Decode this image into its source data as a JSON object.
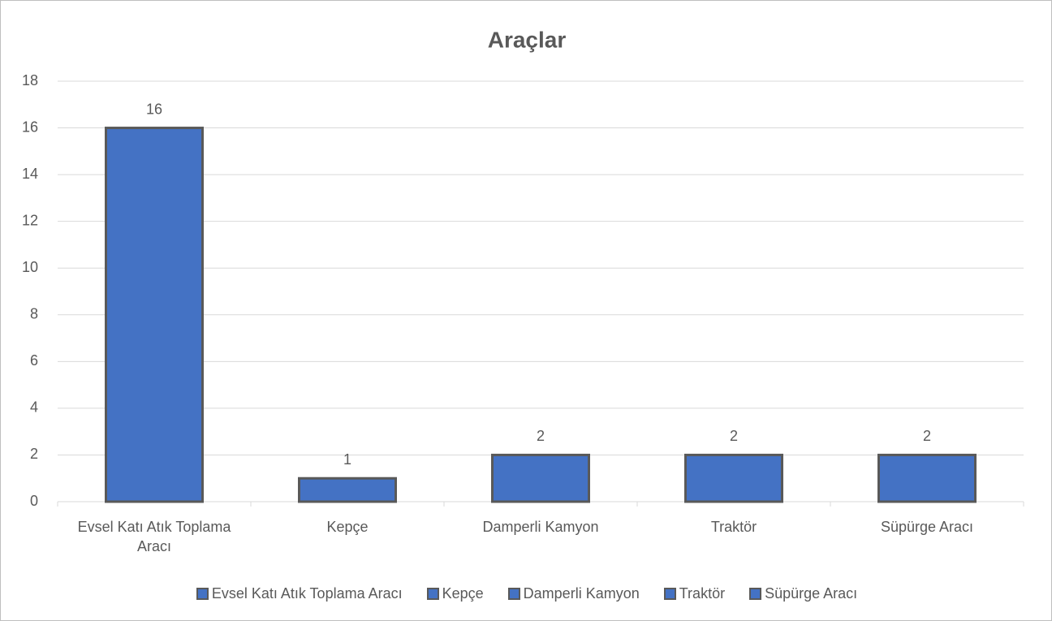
{
  "chart_data": {
    "type": "bar",
    "title": "Araçlar",
    "categories": [
      "Evsel Katı Atık Toplama Aracı",
      "Kepçe",
      "Damperli Kamyon",
      "Traktör",
      "Süpürge Aracı"
    ],
    "values": [
      16,
      1,
      2,
      2,
      2
    ],
    "color": "#4472c4",
    "edge_color": "#595959",
    "ylim": [
      0,
      18
    ],
    "yticks": [
      0,
      2,
      4,
      6,
      8,
      10,
      12,
      14,
      16,
      18
    ],
    "grid": true,
    "legend": "bottom"
  }
}
